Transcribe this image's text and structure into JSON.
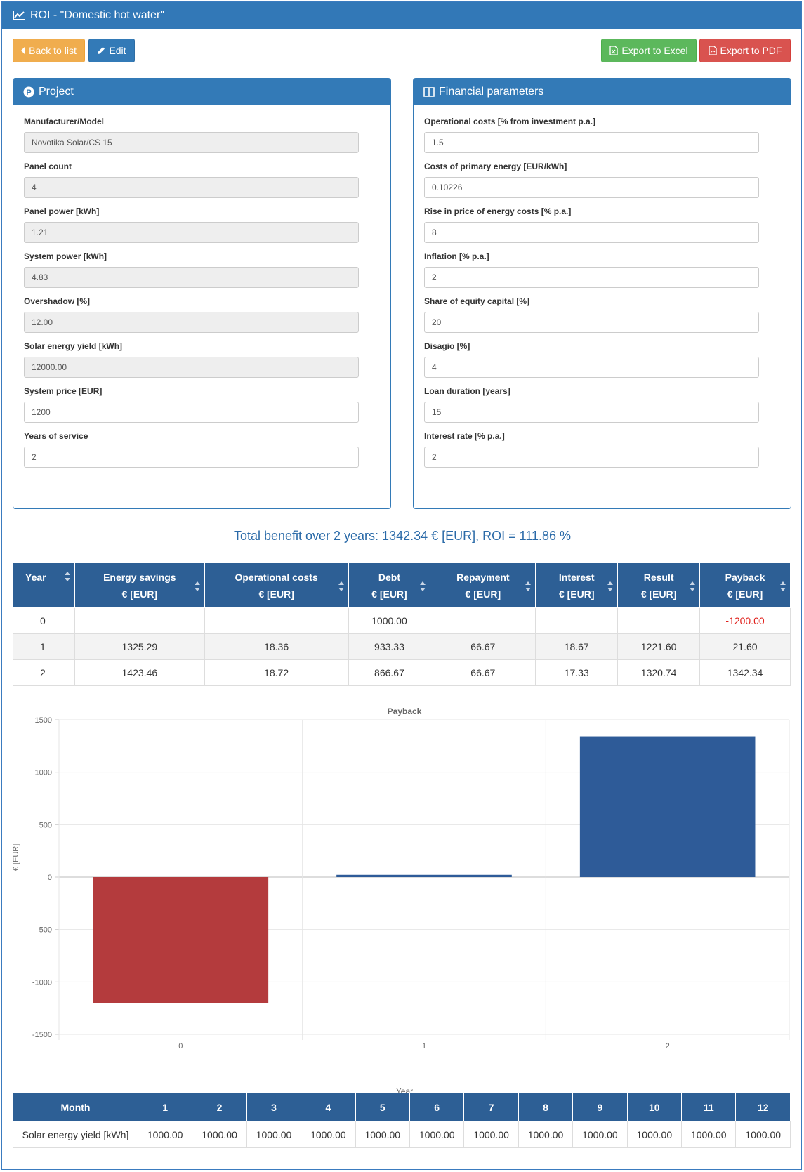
{
  "header": {
    "title": "ROI - \"Domestic hot water\""
  },
  "toolbar": {
    "back_label": "Back to list",
    "edit_label": "Edit",
    "excel_label": "Export to Excel",
    "pdf_label": "Export to PDF"
  },
  "project": {
    "title": "Project",
    "fields": [
      {
        "label": "Manufacturer/Model",
        "value": "Novotika Solar/CS 15"
      },
      {
        "label": "Panel count",
        "value": "4"
      },
      {
        "label": "Panel power [kWh]",
        "value": "1.21"
      },
      {
        "label": "System power [kWh]",
        "value": "4.83"
      },
      {
        "label": "Overshadow [%]",
        "value": "12.00"
      },
      {
        "label": "Solar energy yield [kWh]",
        "value": "12000.00"
      },
      {
        "label": "System price [EUR]",
        "value": "1200"
      },
      {
        "label": "Years of service",
        "value": "2"
      }
    ]
  },
  "financial": {
    "title": "Financial parameters",
    "fields": [
      {
        "label": "Operational costs [% from investment p.a.]",
        "value": "1.5"
      },
      {
        "label": "Costs of primary energy [EUR/kWh]",
        "value": "0.10226"
      },
      {
        "label": "Rise in price of energy costs [% p.a.]",
        "value": "8"
      },
      {
        "label": "Inflation [% p.a.]",
        "value": "2"
      },
      {
        "label": "Share of equity capital [%]",
        "value": "20"
      },
      {
        "label": "Disagio [%]",
        "value": "4"
      },
      {
        "label": "Loan duration [years]",
        "value": "15"
      },
      {
        "label": "Interest rate [% p.a.]",
        "value": "2"
      }
    ]
  },
  "summary": "Total benefit over 2 years: 1342.34 € [EUR], ROI = 111.86 %",
  "roi_table": {
    "headers": [
      {
        "line1": "Year",
        "line2": ""
      },
      {
        "line1": "Energy savings",
        "line2": "€ [EUR]"
      },
      {
        "line1": "Operational costs",
        "line2": "€ [EUR]"
      },
      {
        "line1": "Debt",
        "line2": "€ [EUR]"
      },
      {
        "line1": "Repayment",
        "line2": "€ [EUR]"
      },
      {
        "line1": "Interest",
        "line2": "€ [EUR]"
      },
      {
        "line1": "Result",
        "line2": "€ [EUR]"
      },
      {
        "line1": "Payback",
        "line2": "€ [EUR]"
      }
    ],
    "rows": [
      [
        "0",
        "",
        "",
        "1000.00",
        "",
        "",
        "",
        "-1200.00"
      ],
      [
        "1",
        "1325.29",
        "18.36",
        "933.33",
        "66.67",
        "18.67",
        "1221.60",
        "21.60"
      ],
      [
        "2",
        "1423.46",
        "18.72",
        "866.67",
        "66.67",
        "17.33",
        "1320.74",
        "1342.34"
      ]
    ]
  },
  "colors": {
    "negative_bar": "#b43b3d",
    "positive_bar": "#2e5b98",
    "header_blue": "#337ab7"
  },
  "chart_data": {
    "type": "bar",
    "title": "Payback",
    "xlabel": "Year",
    "ylabel": "€ [EUR]",
    "categories": [
      "0",
      "1",
      "2"
    ],
    "values": [
      -1200.0,
      21.6,
      1342.34
    ],
    "ylim": [
      -1500,
      1500
    ],
    "yticks": [
      "1500",
      "1000",
      "500",
      "0",
      "-500",
      "-1000",
      "-1500"
    ],
    "grid": true
  },
  "monthly_table": {
    "month_label": "Month",
    "months": [
      "1",
      "2",
      "3",
      "4",
      "5",
      "6",
      "7",
      "8",
      "9",
      "10",
      "11",
      "12"
    ],
    "row_label": "Solar energy yield [kWh]",
    "values": [
      "1000.00",
      "1000.00",
      "1000.00",
      "1000.00",
      "1000.00",
      "1000.00",
      "1000.00",
      "1000.00",
      "1000.00",
      "1000.00",
      "1000.00",
      "1000.00"
    ]
  }
}
